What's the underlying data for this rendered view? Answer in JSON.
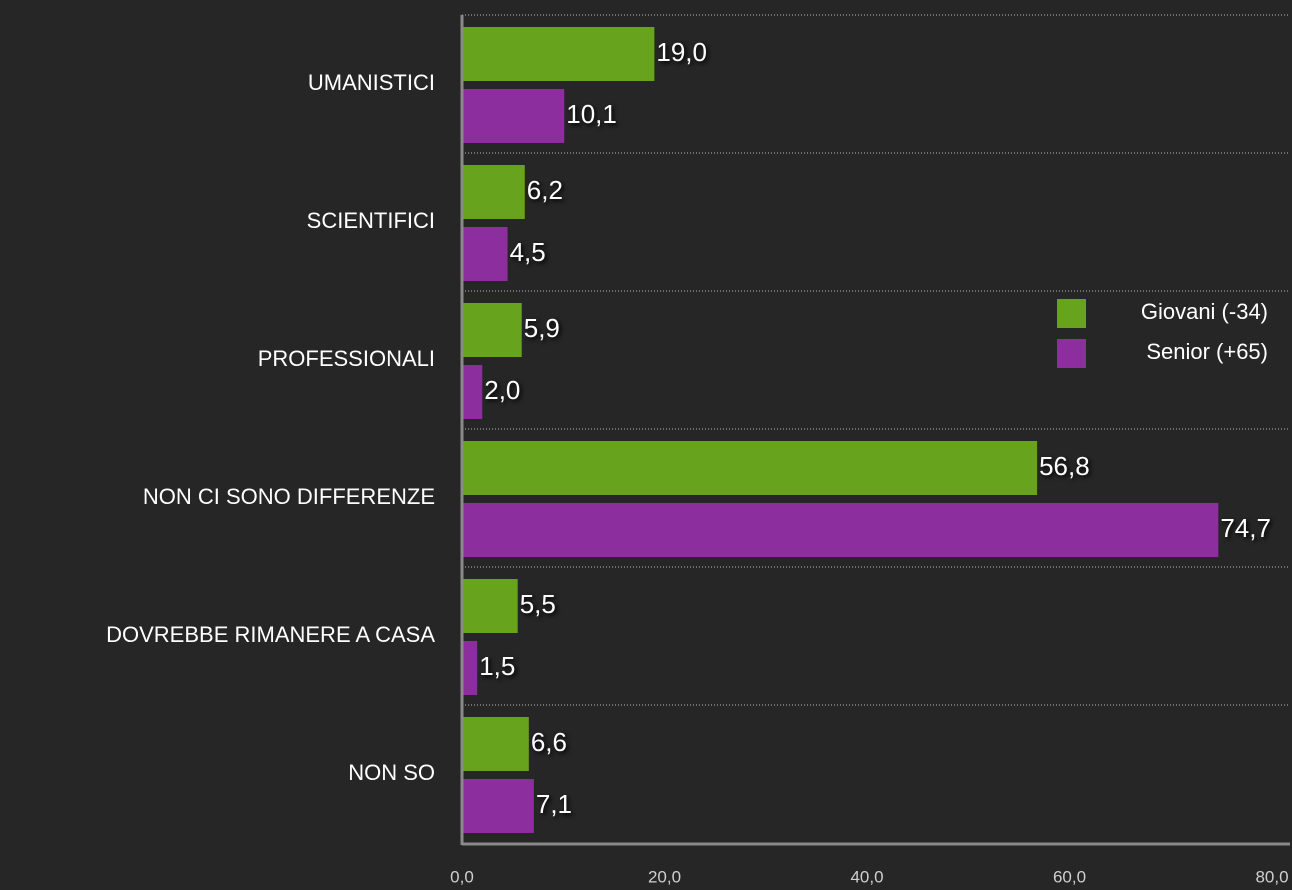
{
  "chart_data": {
    "type": "bar",
    "orientation": "horizontal",
    "categories": [
      "UMANISTICI",
      "SCIENTIFICI",
      "PROFESSIONALI",
      "NON CI SONO DIFFERENZE",
      "DOVREBBE RIMANERE A CASA",
      "NON SO"
    ],
    "series": [
      {
        "name": "Giovani (-34)",
        "color": "#67a31c",
        "values": [
          19.0,
          6.2,
          5.9,
          56.8,
          5.5,
          6.6
        ],
        "value_labels": [
          "19,0",
          "6,2",
          "5,9",
          "56,8",
          "5,5",
          "6,6"
        ]
      },
      {
        "name": "Senior (+65)",
        "color": "#8c2e9e",
        "values": [
          10.1,
          4.5,
          2.0,
          74.7,
          1.5,
          7.1
        ],
        "value_labels": [
          "10,1",
          "4,5",
          "2,0",
          "74,7",
          "1,5",
          "7,1"
        ]
      }
    ],
    "xlim": [
      0,
      80
    ],
    "xticks": [
      {
        "value": 0,
        "label": "0,0"
      },
      {
        "value": 20,
        "label": "20,0"
      },
      {
        "value": 40,
        "label": "40,0"
      },
      {
        "value": 60,
        "label": "60,0"
      },
      {
        "value": 80,
        "label": "80,0"
      }
    ],
    "legend": "right"
  }
}
